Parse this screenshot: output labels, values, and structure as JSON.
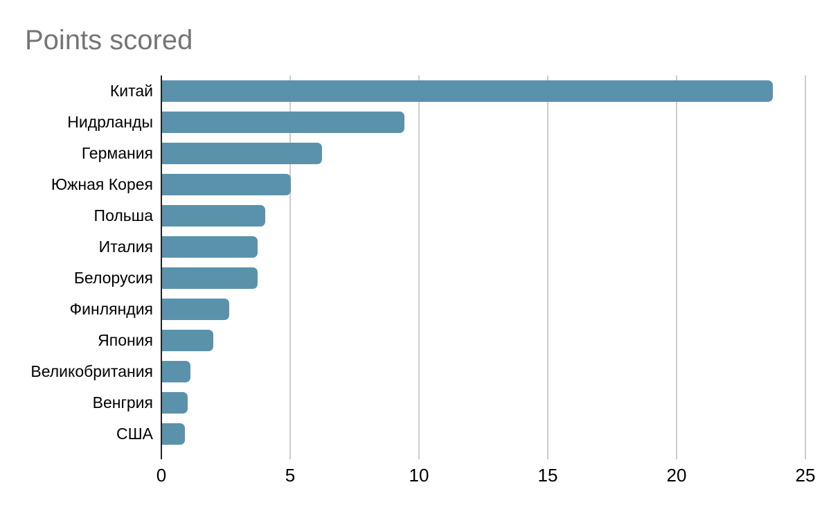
{
  "chart": {
    "title": "Points scored"
  },
  "colors": {
    "background": "#ffffff",
    "title": "#757575",
    "bar": "#5a92ab",
    "axis_line": "#212121",
    "gridline": "#cccccc",
    "label": "#000000"
  },
  "chart_data": {
    "type": "bar",
    "orientation": "horizontal",
    "title": "Points scored",
    "categories": [
      "Китай",
      "Нидрланды",
      "Германия",
      "Южная Корея",
      "Польша",
      "Италия",
      "Белорусия",
      "Финляндия",
      "Япония",
      "Великобритания",
      "Венгрия",
      "США"
    ],
    "values": [
      23.7,
      9.4,
      6.2,
      5,
      4,
      3.7,
      3.7,
      2.6,
      2,
      1.1,
      1,
      0.9
    ],
    "xlabel": "",
    "ylabel": "",
    "xlim": [
      0,
      25
    ],
    "x_ticks": [
      0,
      5,
      10,
      15,
      20,
      25
    ],
    "grid": true,
    "legend": "none"
  }
}
